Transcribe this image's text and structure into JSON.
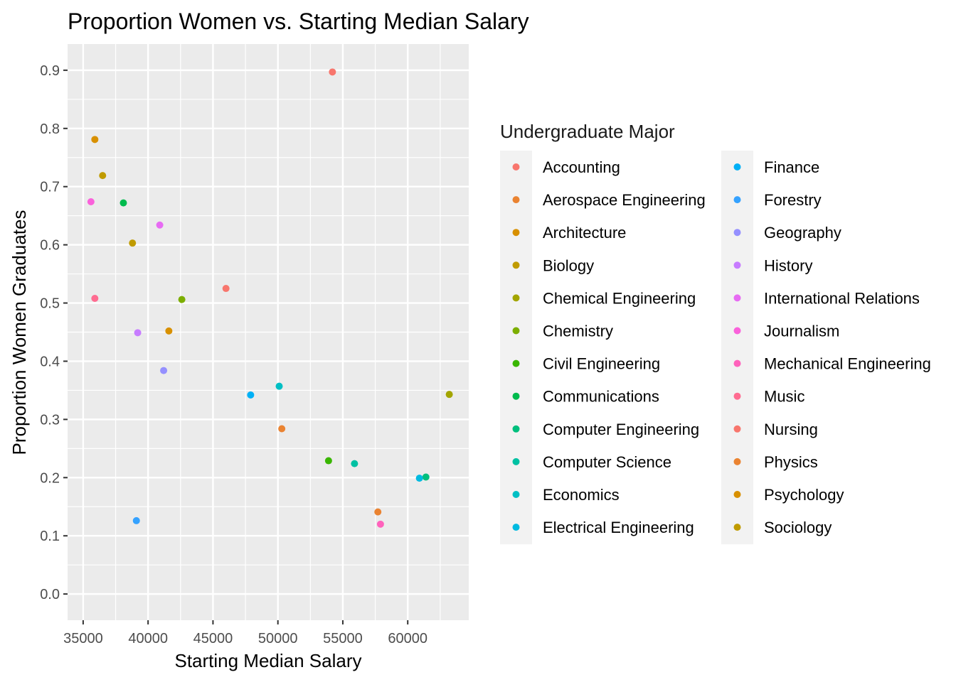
{
  "chart_data": {
    "type": "scatter",
    "title": "Proportion Women vs. Starting Median Salary",
    "xlabel": "Starting Median Salary",
    "ylabel": "Proportion Women Graduates",
    "xlim": [
      33800,
      64700
    ],
    "ylim": [
      -0.045,
      0.945
    ],
    "x_ticks": [
      35000,
      40000,
      45000,
      50000,
      55000,
      60000
    ],
    "x_tick_labels": [
      "35000",
      "40000",
      "45000",
      "50000",
      "55000",
      "60000"
    ],
    "y_ticks": [
      0.0,
      0.1,
      0.2,
      0.3,
      0.4,
      0.5,
      0.6,
      0.7,
      0.8,
      0.9
    ],
    "y_tick_labels": [
      "0.0",
      "0.1",
      "0.2",
      "0.3",
      "0.4",
      "0.5",
      "0.6",
      "0.7",
      "0.8",
      "0.9"
    ],
    "grid": true,
    "panel_background": "#ebebeb",
    "legend": {
      "title": "Undergraduate Major",
      "placement": "right",
      "columns": 2
    },
    "series": [
      {
        "name": "Accounting",
        "color": "#F8766D",
        "x": 46000,
        "y": 0.525
      },
      {
        "name": "Aerospace Engineering",
        "color": "#EA8331",
        "x": 57700,
        "y": 0.141
      },
      {
        "name": "Architecture",
        "color": "#D89000",
        "x": 41600,
        "y": 0.452
      },
      {
        "name": "Biology",
        "color": "#C09B00",
        "x": 38800,
        "y": 0.603
      },
      {
        "name": "Chemical Engineering",
        "color": "#A3A500",
        "x": 63200,
        "y": 0.343
      },
      {
        "name": "Chemistry",
        "color": "#7CAE00",
        "x": 42600,
        "y": 0.506
      },
      {
        "name": "Civil Engineering",
        "color": "#39B600",
        "x": 53900,
        "y": 0.229
      },
      {
        "name": "Communications",
        "color": "#00BB4E",
        "x": 38100,
        "y": 0.672
      },
      {
        "name": "Computer Engineering",
        "color": "#00BF7D",
        "x": 61400,
        "y": 0.201
      },
      {
        "name": "Computer Science",
        "color": "#00C1A3",
        "x": 55900,
        "y": 0.224
      },
      {
        "name": "Economics",
        "color": "#00BFC4",
        "x": 50100,
        "y": 0.357
      },
      {
        "name": "Electrical Engineering",
        "color": "#00BAE0",
        "x": 60900,
        "y": 0.199
      },
      {
        "name": "Finance",
        "color": "#00B0F6",
        "x": 47900,
        "y": 0.342
      },
      {
        "name": "Forestry",
        "color": "#35A2FF",
        "x": 39100,
        "y": 0.126
      },
      {
        "name": "Geography",
        "color": "#9590FF",
        "x": 41200,
        "y": 0.384
      },
      {
        "name": "History",
        "color": "#C77CFF",
        "x": 39200,
        "y": 0.449
      },
      {
        "name": "International Relations",
        "color": "#E76BF3",
        "x": 40900,
        "y": 0.634
      },
      {
        "name": "Journalism",
        "color": "#FA62DB",
        "x": 35600,
        "y": 0.674
      },
      {
        "name": "Mechanical Engineering",
        "color": "#FF62BC",
        "x": 57900,
        "y": 0.12
      },
      {
        "name": "Music",
        "color": "#FF6C91",
        "x": 35900,
        "y": 0.508
      },
      {
        "name": "Nursing",
        "color": "#F8766D",
        "x": 54200,
        "y": 0.897
      },
      {
        "name": "Physics",
        "color": "#EA8331",
        "x": 50300,
        "y": 0.284
      },
      {
        "name": "Psychology",
        "color": "#D89000",
        "x": 35900,
        "y": 0.781
      },
      {
        "name": "Sociology",
        "color": "#C09B00",
        "x": 36500,
        "y": 0.719
      }
    ]
  }
}
